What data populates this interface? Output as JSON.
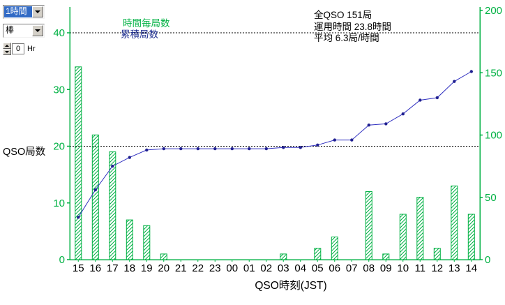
{
  "controls": {
    "interval_select": {
      "value": "1時間"
    },
    "style_select": {
      "value": "棒"
    },
    "offset_spinner": {
      "value": "0",
      "unit": "Hr"
    }
  },
  "colors": {
    "green": "#00b143",
    "line_blue": "#3030c0",
    "marker_blue": "#202090",
    "legend_line_label": "#203090",
    "grid_black": "#000000",
    "x_tick_label": "#000000",
    "selection_blue": "#316ac5"
  },
  "chart_data": {
    "type": "bar+line",
    "title": "",
    "xlabel": "QSO時刻(JST)",
    "ylabel": "QSO局数",
    "categories": [
      "15",
      "16",
      "17",
      "18",
      "19",
      "20",
      "21",
      "22",
      "23",
      "00",
      "01",
      "02",
      "03",
      "04",
      "05",
      "06",
      "07",
      "08",
      "09",
      "10",
      "11",
      "12",
      "13",
      "14"
    ],
    "series": [
      {
        "name": "時間毎局数",
        "type": "bar",
        "axis": "left",
        "values": [
          34,
          22,
          19,
          7,
          6,
          1,
          0,
          0,
          0,
          0,
          0,
          0,
          1,
          0,
          2,
          4,
          0,
          12,
          1,
          8,
          11,
          2,
          13,
          8
        ]
      },
      {
        "name": "累積局数",
        "type": "line",
        "axis": "right",
        "values": [
          34,
          56,
          75,
          82,
          88,
          89,
          89,
          89,
          89,
          89,
          89,
          89,
          90,
          90,
          92,
          96,
          96,
          108,
          109,
          117,
          128,
          130,
          143,
          151
        ]
      }
    ],
    "left_axis": {
      "ticks": [
        0,
        10,
        20,
        30,
        40
      ],
      "range": [
        0,
        44.5
      ]
    },
    "right_axis": {
      "ticks": [
        0,
        50,
        100,
        150,
        200
      ],
      "range": [
        0,
        200
      ]
    },
    "gridlines": {
      "axis": "left",
      "values": [
        20,
        40
      ],
      "style": "dashed"
    },
    "legend_position": "top-left-inside",
    "annotations": [
      "全QSO 151局",
      "運用時間 23.8時間",
      "平均 6.3局/時間"
    ]
  }
}
